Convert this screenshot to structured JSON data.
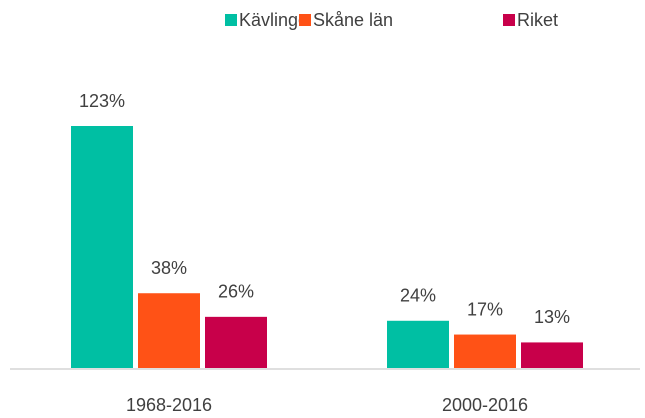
{
  "chart_data": {
    "type": "bar",
    "categories": [
      "1968-2016",
      "2000-2016"
    ],
    "series": [
      {
        "name": "Kävlinge",
        "color": "#00bfa3",
        "values": [
          123,
          24
        ],
        "value_labels": [
          "123%",
          "24%"
        ]
      },
      {
        "name": "Skåne län",
        "color": "#ff5216",
        "values": [
          38,
          17
        ],
        "value_labels": [
          "38%",
          "17%"
        ]
      },
      {
        "name": "Riket",
        "color": "#c8004a",
        "values": [
          26,
          13
        ],
        "value_labels": [
          "26%",
          "13%"
        ]
      }
    ]
  }
}
